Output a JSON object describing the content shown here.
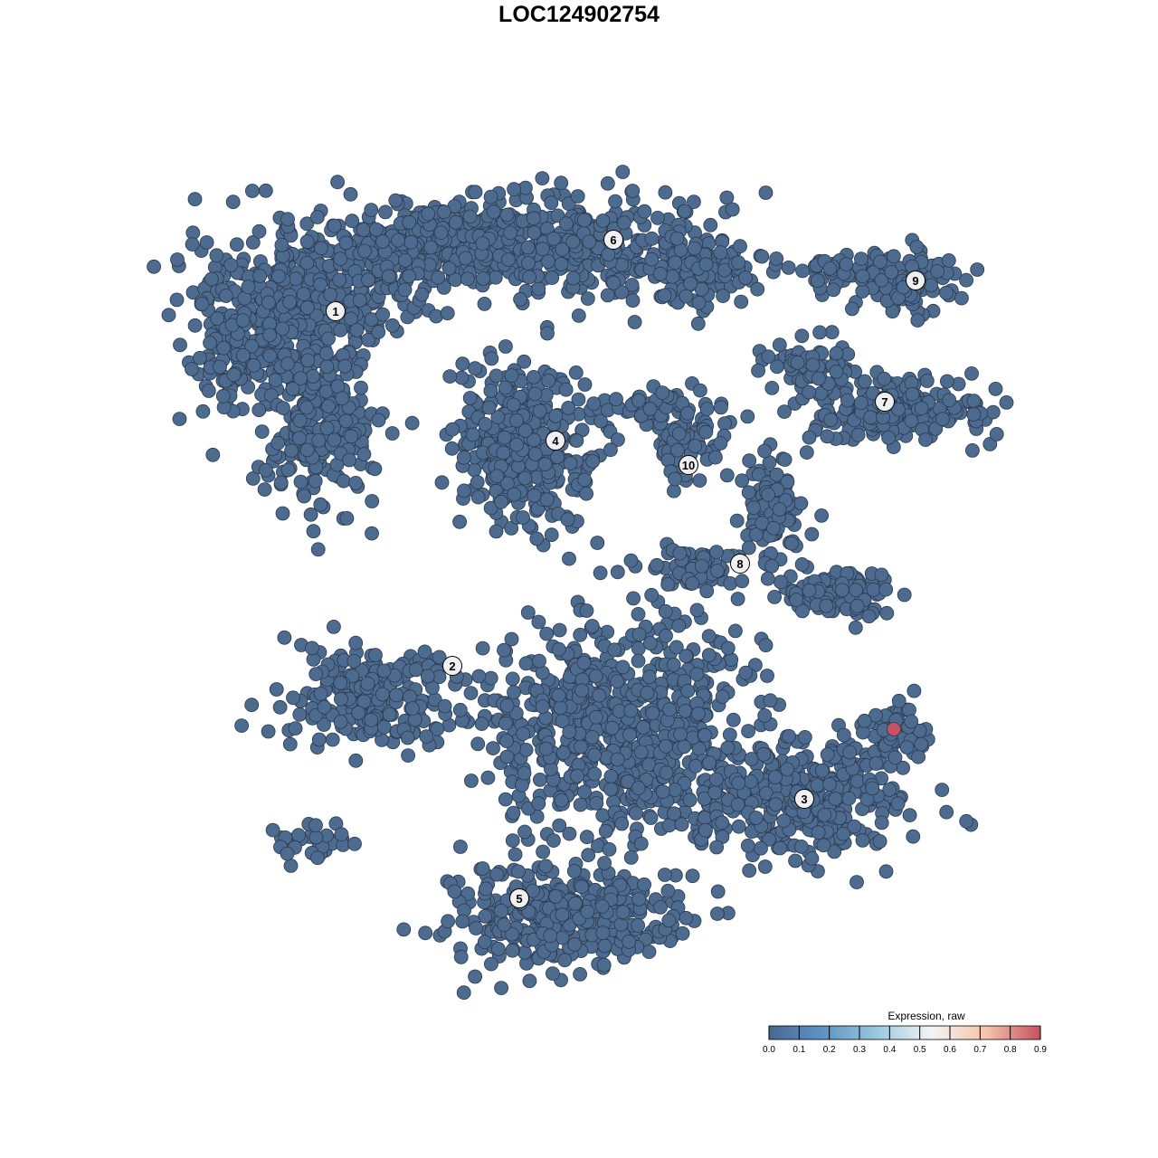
{
  "chart_data": {
    "type": "scatter",
    "title": "LOC124902754",
    "xlabel": "",
    "ylabel": "",
    "grid": false,
    "axes_visible": false,
    "point_fill_low": "#4d6a8f",
    "point_stroke": "#2b3a4e",
    "cluster_labels": [
      "1",
      "2",
      "3",
      "4",
      "5",
      "6",
      "7",
      "8",
      "9",
      "10"
    ],
    "typical_expression": 0.0,
    "highlight_expression": 0.9,
    "highlight_cluster": "3",
    "legend": {
      "title": "Expression, raw",
      "placement": "bottom-right",
      "ticks": [
        "0.0",
        "0.1",
        "0.2",
        "0.3",
        "0.4",
        "0.5",
        "0.6",
        "0.7",
        "0.8",
        "0.9"
      ],
      "range": [
        0,
        0.9
      ],
      "colors": [
        "#4a6891",
        "#5f93c6",
        "#9cc9e0",
        "#f4f4f4",
        "#f6c3aa",
        "#c45260"
      ]
    }
  }
}
